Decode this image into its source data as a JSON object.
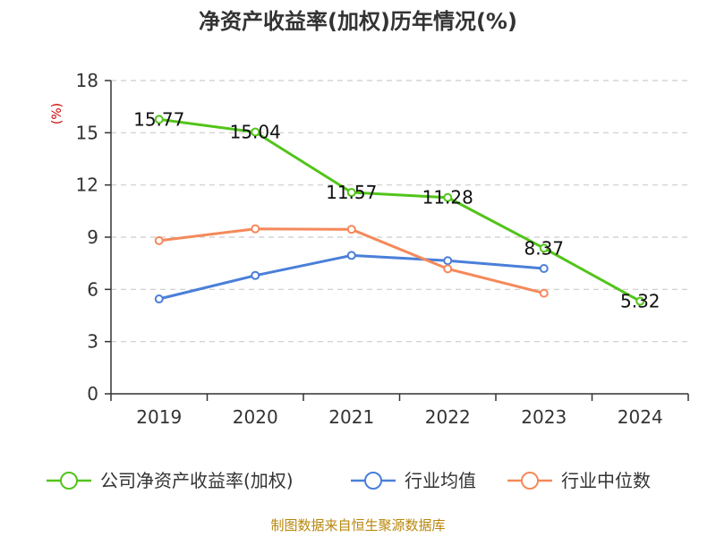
{
  "chart_data": {
    "type": "line",
    "title": "净资产收益率(加权)历年情况(%)",
    "ylabel": "(%)",
    "xlabel": "",
    "categories": [
      "2019",
      "2020",
      "2021",
      "2022",
      "2023",
      "2024"
    ],
    "ylim": [
      0,
      18
    ],
    "yticks": [
      0,
      3,
      6,
      9,
      12,
      15,
      18
    ],
    "grid": true,
    "legend_position": "bottom",
    "series": [
      {
        "name": "公司净资产收益率(加权)",
        "color": "#52c41a",
        "values": [
          15.77,
          15.04,
          11.57,
          11.28,
          8.37,
          5.32
        ],
        "labels": [
          "15.77",
          "15.04",
          "11.57",
          "11.28",
          "8.37",
          "5.32"
        ]
      },
      {
        "name": "行业均值",
        "color": "#4a7fd9",
        "values": [
          5.45,
          6.8,
          7.95,
          7.65,
          7.2,
          null
        ]
      },
      {
        "name": "行业中位数",
        "color": "#f5895a",
        "values": [
          8.8,
          9.48,
          9.45,
          7.18,
          5.78,
          null
        ]
      }
    ],
    "source": "制图数据来自恒生聚源数据库"
  }
}
